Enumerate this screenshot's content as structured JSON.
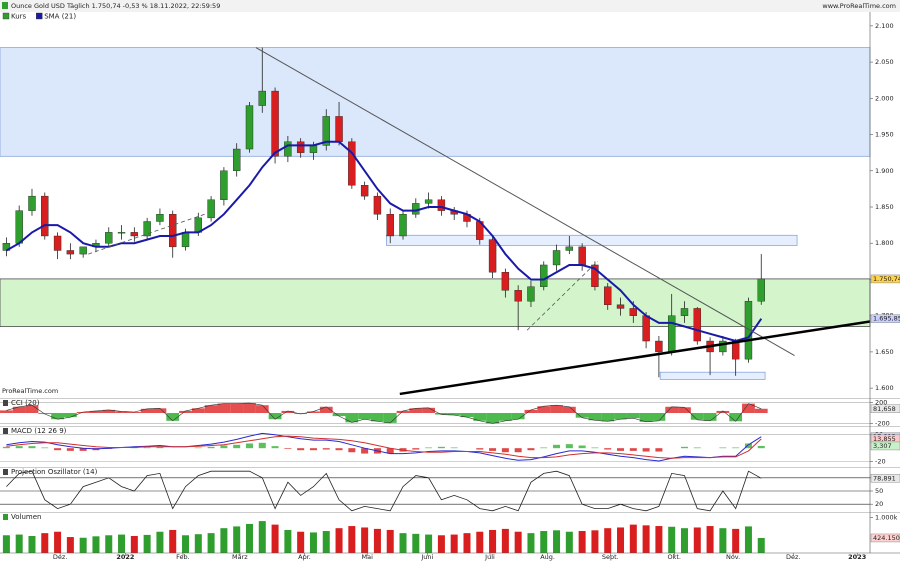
{
  "chart_data": [
    {
      "type": "candlestick",
      "title": "Ounce Gold USD Täglich 1.750,74 -0,53 % 18.11.2022, 22:59:59",
      "source": "www.ProRealTime.com",
      "watermark": "ProRealTime.com",
      "xlim": [
        0,
        68
      ],
      "ylim": [
        1585,
        2115
      ],
      "yticks": [
        {
          "value": 1600,
          "label": "1.600"
        },
        {
          "value": 1650,
          "label": "1.650"
        },
        {
          "value": 1700,
          "label": "1.700"
        },
        {
          "value": 1750,
          "label": "1.750"
        },
        {
          "value": 1800,
          "label": "1.800"
        },
        {
          "value": 1850,
          "label": "1.850"
        },
        {
          "value": 1900,
          "label": "1.900"
        },
        {
          "value": 1950,
          "label": "1.950"
        },
        {
          "value": 2000,
          "label": "2.000"
        },
        {
          "value": 2050,
          "label": "2.050"
        },
        {
          "value": 2100,
          "label": "2.100"
        }
      ],
      "zones": [
        {
          "x": [
            0,
            68
          ],
          "y": [
            1920,
            2070
          ],
          "color": "#dbe7fb",
          "stroke": "#7b9ad6"
        },
        {
          "x": [
            0,
            68
          ],
          "y": [
            1685,
            1750.74
          ],
          "color": "#d4f5cc",
          "stroke": "#333333"
        },
        {
          "x": [
            30.2,
            62.3
          ],
          "y": [
            1797,
            1811
          ],
          "color": "#e6efff",
          "stroke": "#7b9ad6"
        },
        {
          "x": [
            51.6,
            59.8
          ],
          "y": [
            1612,
            1622
          ],
          "color": "#e6efff",
          "stroke": "#7b9ad6"
        }
      ],
      "trendlines": [
        {
          "points": [
            [
              20,
              2070
            ],
            [
              62.1,
              1645
            ]
          ],
          "color": "#555555",
          "width": 1,
          "dashed": false
        },
        {
          "points": [
            [
              31.25,
              1592
            ],
            [
              68,
              1692
            ]
          ],
          "color": "#000000",
          "width": 2.5,
          "dashed": false
        },
        {
          "points": [
            [
              41.2,
              1680
            ],
            [
              46.7,
              1775
            ]
          ],
          "color": "#555555",
          "width": 0.8,
          "dashed": true
        },
        {
          "points": [
            [
              6.9,
              1785
            ],
            [
              16,
              1840
            ]
          ],
          "color": "#555555",
          "width": 0.8,
          "dashed": true
        }
      ],
      "series": [
        {
          "name": "Kurs",
          "type": "candlestick",
          "up_color": "#2f9e2f",
          "down_color": "#d81e1e",
          "open": [
            1790,
            1800,
            1845,
            1865,
            1810,
            1790,
            1785,
            1795,
            1800,
            1815,
            1815,
            1810,
            1830,
            1840,
            1795,
            1815,
            1835,
            1860,
            1900,
            1930,
            1990,
            2010,
            1920,
            1940,
            1925,
            1935,
            1975,
            1940,
            1880,
            1865,
            1840,
            1810,
            1840,
            1855,
            1860,
            1845,
            1840,
            1830,
            1805,
            1760,
            1735,
            1720,
            1740,
            1770,
            1790,
            1795,
            1770,
            1740,
            1715,
            1710,
            1700,
            1665,
            1650,
            1700,
            1710,
            1665,
            1650,
            1665,
            1640,
            1720
          ],
          "high": [
            1808,
            1852,
            1875,
            1870,
            1815,
            1800,
            1795,
            1805,
            1822,
            1825,
            1822,
            1835,
            1848,
            1845,
            1820,
            1842,
            1865,
            1905,
            1938,
            1995,
            2070,
            2015,
            1948,
            1945,
            1940,
            1985,
            1995,
            1945,
            1885,
            1870,
            1848,
            1845,
            1862,
            1870,
            1865,
            1850,
            1845,
            1835,
            1810,
            1765,
            1742,
            1748,
            1775,
            1798,
            1810,
            1800,
            1775,
            1745,
            1725,
            1720,
            1705,
            1672,
            1730,
            1720,
            1712,
            1670,
            1672,
            1668,
            1725,
            1785
          ],
          "low": [
            1782,
            1795,
            1838,
            1805,
            1778,
            1778,
            1780,
            1788,
            1795,
            1805,
            1802,
            1805,
            1825,
            1780,
            1790,
            1810,
            1830,
            1852,
            1892,
            1925,
            1980,
            1910,
            1912,
            1918,
            1915,
            1928,
            1935,
            1875,
            1860,
            1832,
            1800,
            1805,
            1835,
            1848,
            1838,
            1832,
            1822,
            1798,
            1752,
            1725,
            1680,
            1712,
            1735,
            1762,
            1785,
            1762,
            1735,
            1708,
            1700,
            1690,
            1655,
            1615,
            1645,
            1690,
            1660,
            1618,
            1645,
            1617,
            1635,
            1715
          ],
          "close": [
            1800,
            1845,
            1865,
            1810,
            1790,
            1785,
            1795,
            1800,
            1815,
            1815,
            1810,
            1830,
            1840,
            1795,
            1815,
            1835,
            1860,
            1900,
            1930,
            1990,
            2010,
            1920,
            1940,
            1925,
            1935,
            1975,
            1940,
            1880,
            1865,
            1840,
            1810,
            1840,
            1855,
            1860,
            1845,
            1840,
            1830,
            1805,
            1760,
            1735,
            1720,
            1740,
            1770,
            1790,
            1795,
            1770,
            1740,
            1715,
            1710,
            1700,
            1665,
            1650,
            1700,
            1710,
            1665,
            1650,
            1665,
            1640,
            1720,
            1750.74
          ]
        },
        {
          "name": "SMA (21)",
          "type": "line",
          "color": "#1a1aa8",
          "width": 2,
          "values": [
            1790,
            1800,
            1815,
            1825,
            1825,
            1815,
            1800,
            1795,
            1795,
            1800,
            1800,
            1805,
            1810,
            1810,
            1815,
            1815,
            1825,
            1840,
            1860,
            1880,
            1905,
            1925,
            1935,
            1935,
            1935,
            1940,
            1940,
            1925,
            1900,
            1875,
            1855,
            1845,
            1845,
            1850,
            1850,
            1845,
            1840,
            1830,
            1810,
            1785,
            1765,
            1750,
            1750,
            1760,
            1770,
            1770,
            1765,
            1750,
            1735,
            1715,
            1700,
            1690,
            1690,
            1685,
            1680,
            1675,
            1670,
            1665,
            1670,
            1695.85
          ]
        }
      ],
      "last_labels": [
        {
          "value": 1750.74,
          "label": "1.750,74",
          "color": "#ffd24d"
        },
        {
          "value": 1695.85,
          "label": "1.695,85",
          "color": "#c9d0ff"
        }
      ]
    },
    {
      "type": "area",
      "title": "CCI (20)",
      "ylim": [
        -250,
        250
      ],
      "yticks": [
        200,
        -200
      ],
      "grid": true,
      "series": [
        {
          "name": "CCI",
          "type": "area",
          "pos_color": "#e03030",
          "neg_color": "#2fae2f",
          "color": "#333333",
          "values": [
            50,
            120,
            150,
            -20,
            -120,
            -80,
            20,
            40,
            60,
            30,
            20,
            80,
            90,
            -150,
            40,
            90,
            150,
            180,
            180,
            190,
            150,
            -120,
            40,
            -20,
            30,
            120,
            -60,
            -180,
            -120,
            -160,
            -190,
            40,
            90,
            100,
            -30,
            -40,
            -80,
            -150,
            -200,
            -150,
            -120,
            60,
            130,
            150,
            120,
            -90,
            -140,
            -160,
            -120,
            -100,
            -170,
            -150,
            120,
            110,
            -130,
            -150,
            40,
            -160,
            180,
            81.658
          ]
        }
      ],
      "last_labels": [
        {
          "value": 81.658,
          "label": "81,658",
          "color": "#e8e8e8"
        }
      ]
    },
    {
      "type": "line",
      "title": "MACD (12 26 9)",
      "ylim": [
        -25,
        30
      ],
      "yticks": [
        20,
        -20
      ],
      "grid": true,
      "series": [
        {
          "name": "Histogramm",
          "type": "bar",
          "pos_color": "#5cc05c",
          "neg_color": "#e04848",
          "values": [
            2,
            3,
            3,
            1,
            -3,
            -4,
            -4,
            -3,
            -1,
            0,
            1,
            1,
            2,
            0,
            0,
            1,
            2,
            4,
            5,
            7,
            8,
            3,
            -1,
            -3,
            -3,
            -2,
            -3,
            -6,
            -8,
            -8,
            -8,
            -5,
            -2,
            1,
            2,
            1,
            0,
            -2,
            -4,
            -6,
            -6,
            -3,
            1,
            5,
            6,
            4,
            1,
            -2,
            -4,
            -4,
            -5,
            -5,
            0,
            2,
            1,
            0,
            1,
            1,
            7,
            3.307
          ]
        },
        {
          "name": "MACD",
          "type": "line",
          "color": "#2a2ad0",
          "width": 1,
          "values": [
            5,
            8,
            10,
            9,
            5,
            2,
            0,
            -1,
            0,
            1,
            2,
            3,
            4,
            2,
            2,
            4,
            6,
            9,
            13,
            18,
            22,
            20,
            17,
            14,
            12,
            12,
            10,
            5,
            0,
            -4,
            -8,
            -8,
            -7,
            -5,
            -4,
            -4,
            -5,
            -7,
            -11,
            -15,
            -18,
            -17,
            -13,
            -8,
            -4,
            -4,
            -6,
            -9,
            -12,
            -14,
            -17,
            -19,
            -15,
            -12,
            -13,
            -14,
            -12,
            -12,
            5,
            17.013
          ]
        },
        {
          "name": "Signal",
          "type": "line",
          "color": "#d03030",
          "width": 1,
          "values": [
            3,
            5,
            7,
            8,
            8,
            6,
            4,
            2,
            1,
            1,
            1,
            2,
            2,
            2,
            2,
            3,
            4,
            5,
            8,
            11,
            14,
            17,
            18,
            17,
            15,
            14,
            13,
            11,
            8,
            4,
            0,
            -3,
            -5,
            -6,
            -6,
            -5,
            -5,
            -5,
            -7,
            -9,
            -12,
            -14,
            -14,
            -13,
            -10,
            -8,
            -7,
            -7,
            -8,
            -10,
            -12,
            -14,
            -15,
            -14,
            -14,
            -14,
            -13,
            -13,
            -4,
            13.855
          ]
        }
      ],
      "last_labels": [
        {
          "value": 17.013,
          "label": "17,013",
          "color": "#c9d0ff"
        },
        {
          "value": 13.855,
          "label": "13,855",
          "color": "#ffc9c9"
        },
        {
          "value": 3.307,
          "label": "3,307",
          "color": "#c9f0c9"
        }
      ]
    },
    {
      "type": "line",
      "title": "Projection Oszillator (14)",
      "ylim": [
        0,
        100
      ],
      "yticks": [
        80,
        50,
        20
      ],
      "grid": true,
      "series": [
        {
          "name": "Oszillator",
          "type": "line",
          "color": "#222222",
          "width": 0.8,
          "values": [
            60,
            90,
            95,
            30,
            10,
            20,
            60,
            70,
            80,
            60,
            50,
            85,
            90,
            10,
            60,
            85,
            95,
            95,
            95,
            95,
            80,
            10,
            70,
            40,
            60,
            90,
            30,
            5,
            15,
            10,
            5,
            60,
            85,
            80,
            30,
            40,
            30,
            10,
            5,
            15,
            5,
            70,
            90,
            95,
            85,
            20,
            10,
            10,
            20,
            10,
            5,
            15,
            90,
            85,
            10,
            5,
            50,
            10,
            95,
            78.891
          ]
        }
      ],
      "last_labels": [
        {
          "value": 78.891,
          "label": "78,891",
          "color": "#e8e8e8"
        }
      ]
    },
    {
      "type": "bar",
      "title": "Volumen",
      "ylim": [
        0,
        1100000
      ],
      "yticks": [
        {
          "value": 1000000,
          "label": "1.000k"
        }
      ],
      "xticks": [
        {
          "value": 4.7,
          "label": "Dez."
        },
        {
          "value": 9.8,
          "label": "2022",
          "bold": true
        },
        {
          "value": 14.3,
          "label": "Feb."
        },
        {
          "value": 18.75,
          "label": "März"
        },
        {
          "value": 23.8,
          "label": "Apr."
        },
        {
          "value": 28.7,
          "label": "Mai"
        },
        {
          "value": 33.4,
          "label": "Juni"
        },
        {
          "value": 38.3,
          "label": "Juli"
        },
        {
          "value": 42.8,
          "label": "Aug."
        },
        {
          "value": 47.7,
          "label": "Sept."
        },
        {
          "value": 52.7,
          "label": "Okt."
        },
        {
          "value": 57.3,
          "label": "Nov."
        },
        {
          "value": 62,
          "label": "Dez."
        },
        {
          "value": 67,
          "label": "2023",
          "bold": true
        }
      ],
      "series": [
        {
          "name": "Volumen",
          "type": "bar",
          "color_by_candles": true,
          "pos_color": "#2f9e2f",
          "neg_color": "#d81e1e",
          "values": [
            500000,
            520000,
            480000,
            560000,
            600000,
            450000,
            430000,
            470000,
            500000,
            520000,
            480000,
            510000,
            600000,
            650000,
            500000,
            530000,
            560000,
            700000,
            750000,
            820000,
            900000,
            800000,
            650000,
            600000,
            580000,
            620000,
            700000,
            760000,
            720000,
            680000,
            650000,
            560000,
            540000,
            520000,
            500000,
            520000,
            560000,
            600000,
            650000,
            680000,
            600000,
            560000,
            620000,
            640000,
            600000,
            620000,
            640000,
            700000,
            720000,
            800000,
            780000,
            760000,
            740000,
            700000,
            720000,
            760000,
            700000,
            680000,
            750000,
            424150
          ]
        }
      ],
      "last_labels": [
        {
          "value": 424150,
          "label": "424.150",
          "color": "#ffd0d0"
        }
      ]
    }
  ]
}
